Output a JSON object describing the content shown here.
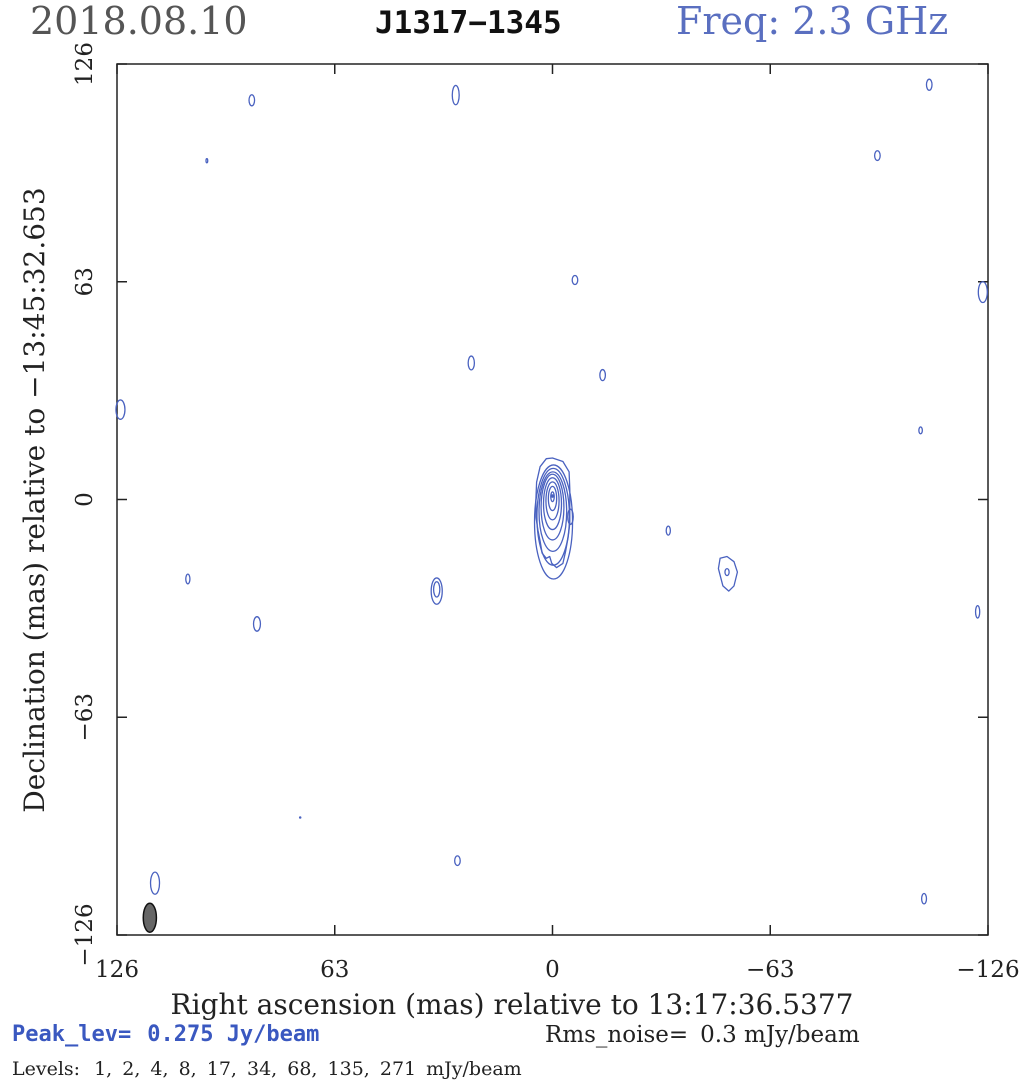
{
  "header": {
    "date": "2018.08.10",
    "source": "J1317−1345",
    "freq": "Freq: 2.3 GHz"
  },
  "chart_data": {
    "type": "contour",
    "title": "J1317−1345",
    "xlabel": "Right ascension (mas) relative to 13:17:36.5377",
    "ylabel": "Declination (mas) relative to −13:45:32.653",
    "xlim": [
      126,
      -126
    ],
    "ylim": [
      -126,
      126
    ],
    "x_ticks": [
      126,
      63,
      0,
      -63,
      -126
    ],
    "y_ticks": [
      126,
      63,
      0,
      -63,
      -126
    ],
    "x_tick_labels": [
      "126",
      "63",
      "0",
      "−63",
      "−126"
    ],
    "y_tick_labels": [
      "126",
      "63",
      "0",
      "−63",
      "−126"
    ],
    "contour_color": "#4a62c0",
    "core": {
      "x": 0,
      "y": 1
    },
    "core_contours": [
      {
        "cx": -0.3,
        "cy": -6.5,
        "rx": 5.5,
        "ry": 16.5
      },
      {
        "cx": -0.2,
        "cy": -5.0,
        "rx": 4.7,
        "ry": 14.0
      },
      {
        "cx": -0.1,
        "cy": -3.5,
        "rx": 4.0,
        "ry": 11.5
      },
      {
        "cx": 0.0,
        "cy": -2.2,
        "rx": 3.3,
        "ry": 9.5
      },
      {
        "cx": 0.0,
        "cy": -1.2,
        "rx": 2.6,
        "ry": 7.5
      },
      {
        "cx": 0.0,
        "cy": -0.4,
        "rx": 1.9,
        "ry": 5.5
      },
      {
        "cx": 0.0,
        "cy": 0.3,
        "rx": 1.2,
        "ry": 3.5
      },
      {
        "cx": 0.0,
        "cy": 0.8,
        "rx": 0.5,
        "ry": 1.4
      }
    ],
    "outer_contour": [
      [
        0,
        12
      ],
      [
        -3,
        11
      ],
      [
        -4.8,
        8
      ],
      [
        -5,
        3
      ],
      [
        -5,
        -2
      ],
      [
        -5,
        -7
      ],
      [
        -4.5,
        -11
      ],
      [
        -3.8,
        -15
      ],
      [
        -3,
        -18.5
      ],
      [
        -1.2,
        -19.7
      ],
      [
        0.2,
        -18.5
      ],
      [
        0.8,
        -16.5
      ],
      [
        1.8,
        -17
      ],
      [
        3,
        -15.5
      ],
      [
        3.6,
        -12
      ],
      [
        4.2,
        -9
      ],
      [
        4.8,
        -5
      ],
      [
        4.8,
        0
      ],
      [
        4.6,
        5
      ],
      [
        3.6,
        9.5
      ],
      [
        1.8,
        11.8
      ]
    ],
    "jet_knob": {
      "x": -5.2,
      "y": -5,
      "rx": 0.8,
      "ry": 2.2
    },
    "noise_contours": [
      {
        "x": 87,
        "y": 115.5,
        "rx": 0.8,
        "ry": 1.6
      },
      {
        "x": 28,
        "y": 117,
        "rx": 1.0,
        "ry": 2.8
      },
      {
        "x": -109,
        "y": 120,
        "rx": 0.8,
        "ry": 1.6
      },
      {
        "x": 100,
        "y": 98,
        "rx": 0.25,
        "ry": 0.6
      },
      {
        "x": -94,
        "y": 99.5,
        "rx": 0.8,
        "ry": 1.4
      },
      {
        "x": -6.5,
        "y": 63.5,
        "rx": 0.8,
        "ry": 1.3
      },
      {
        "x": -124.5,
        "y": 60,
        "rx": 1.3,
        "ry": 3
      },
      {
        "x": 23.5,
        "y": 39.5,
        "rx": 0.9,
        "ry": 2.0
      },
      {
        "x": -14.5,
        "y": 36,
        "rx": 0.8,
        "ry": 1.6
      },
      {
        "x": 125,
        "y": 26,
        "rx": 1.3,
        "ry": 2.8
      },
      {
        "x": -106.5,
        "y": 20,
        "rx": 0.5,
        "ry": 1.0
      },
      {
        "x": -33.5,
        "y": -9,
        "rx": 0.6,
        "ry": 1.3
      },
      {
        "x": 105.5,
        "y": -23,
        "rx": 0.6,
        "ry": 1.4
      },
      {
        "x": 33.5,
        "y": -26.5,
        "rx": 1.6,
        "ry": 3.8
      },
      {
        "x": 33.5,
        "y": -26,
        "rx": 0.9,
        "ry": 2.2
      },
      {
        "x": -123,
        "y": -32.5,
        "rx": 0.6,
        "ry": 1.8
      },
      {
        "x": 85.5,
        "y": -36,
        "rx": 1.0,
        "ry": 2.1
      },
      {
        "x": 73,
        "y": -92,
        "rx": 0.15,
        "ry": 0.15
      },
      {
        "x": 27.5,
        "y": -104.5,
        "rx": 0.8,
        "ry": 1.4
      },
      {
        "x": 115,
        "y": -111,
        "rx": 1.3,
        "ry": 3.2
      },
      {
        "x": -107.5,
        "y": -115.5,
        "rx": 0.7,
        "ry": 1.5
      }
    ],
    "feature_poly": [
      [
        -48.5,
        -17
      ],
      [
        -50.5,
        -16.5
      ],
      [
        -52.5,
        -18
      ],
      [
        -53.5,
        -21
      ],
      [
        -52.5,
        -25
      ],
      [
        -51,
        -26.5
      ],
      [
        -49.3,
        -25
      ],
      [
        -48,
        -20
      ]
    ],
    "feature_inner": {
      "x": -50.5,
      "y": -21,
      "rx": 0.6,
      "ry": 1.0
    },
    "beam": {
      "x": 116.5,
      "y": -121,
      "rx": 1.9,
      "ry": 4.2,
      "fill": "#666666"
    },
    "peak_label": "Peak_lev=",
    "peak_value": "0.275 Jy/beam",
    "rms_label": "Rms_noise=",
    "rms_value": "0.3 mJy/beam",
    "levels_label": "Levels:",
    "levels_value": "1,  2,  4,  8,  17,  34,  68, 135, 271 mJy/beam"
  }
}
